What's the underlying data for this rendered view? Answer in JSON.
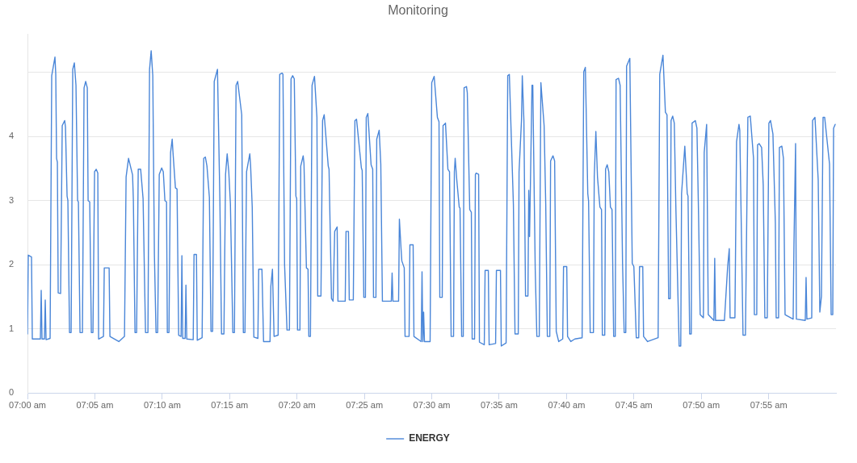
{
  "chart_data": {
    "type": "line",
    "title": "Monitoring",
    "x": [
      7,
      7.001,
      7.005,
      7.006,
      7.016,
      7.017,
      7.018,
      7.021,
      7.022,
      7.023,
      7.028,
      7.03,
      7.034,
      7.035,
      7.036,
      7.037,
      7.038,
      7.041,
      7.043,
      7.046,
      7.047,
      7.049,
      7.05,
      7.052,
      7.054,
      7.056,
      7.058,
      7.06,
      7.062,
      7.063,
      7.065,
      7.068,
      7.07,
      7.072,
      7.074,
      7.075,
      7.077,
      7.079,
      7.081,
      7.083,
      7.085,
      7.087,
      7.088,
      7.094,
      7.095,
      7.101,
      7.102,
      7.113,
      7.12,
      7.122,
      7.125,
      7.13,
      7.131,
      7.133,
      7.135,
      7.137,
      7.14,
      7.143,
      7.146,
      7.149,
      7.151,
      7.153,
      7.155,
      7.157,
      7.159,
      7.161,
      7.163,
      7.166,
      7.168,
      7.17,
      7.172,
      7.173,
      7.175,
      7.177,
      7.179,
      7.18,
      7.183,
      7.185,
      7.187,
      7.19,
      7.191,
      7.192,
      7.195,
      7.196,
      7.197,
      7.205,
      7.206,
      7.209,
      7.21,
      7.216,
      7.218,
      7.22,
      7.222,
      7.225,
      7.227,
      7.229,
      7.231,
      7.235,
      7.238,
      7.24,
      7.243,
      7.245,
      7.247,
      7.249,
      7.251,
      7.254,
      7.256,
      7.258,
      7.26,
      7.265,
      7.267,
      7.269,
      7.271,
      7.275,
      7.276,
      7.278,
      7.28,
      7.285,
      7.286,
      7.29,
      7.292,
      7.3,
      7.301,
      7.303,
      7.305,
      7.31,
      7.312,
      7.315,
      7.316,
      7.318,
      7.321,
      7.324,
      7.326,
      7.328,
      7.33,
      7.332,
      7.333,
      7.334,
      7.337,
      7.338,
      7.341,
      7.342,
      7.345,
      7.347,
      7.348,
      7.35,
      7.352,
      7.355,
      7.358,
      7.359,
      7.363,
      7.365,
      7.367,
      7.372,
      7.373,
      7.376,
      7.378,
      7.38,
      7.383,
      7.384,
      7.393,
      7.394,
      7.397,
      7.398,
      7.403,
      7.405,
      7.407,
      7.413,
      7.414,
      7.416,
      7.418,
      7.419,
      7.421,
      7.425,
      7.427,
      7.428,
      7.431,
      7.432,
      7.435,
      7.437,
      7.439,
      7.45,
      7.451,
      7.452,
      7.459,
      7.46,
      7.462,
      7.463,
      7.466,
      7.467,
      7.472,
      7.473,
      7.477,
      7.478,
      7.487,
      7.488,
      7.489,
      7.49,
      7.491,
      7.498,
      7.5,
      7.503,
      7.507,
      7.509,
      7.51,
      7.513,
      7.514,
      7.517,
      7.52,
      7.522,
      7.524,
      7.527,
      7.528,
      7.529,
      7.531,
      7.534,
      7.535,
      7.537,
      7.539,
      7.54,
      7.543,
      7.544,
      7.547,
      7.549,
      7.55,
      7.553,
      7.554,
      7.555,
      7.558,
      7.559,
      7.565,
      7.566,
      7.57,
      7.571,
      7.579,
      7.58,
      7.585,
      7.586,
      7.592,
      7.594,
      7.596,
      7.601,
      7.603,
      7.607,
      7.608,
      7.611,
      7.612,
      7.614,
      7.616,
      7.619,
      7.62,
      7.621,
      7.622,
      7.624,
      7.625,
      7.628,
      7.63,
      7.633,
      7.635,
      7.639,
      7.641,
      7.643,
      7.646,
      7.647,
      7.65,
      7.652,
      7.654,
      7.657,
      7.662,
      7.663,
      7.667,
      7.668,
      7.672,
      7.677,
      7.686,
      7.688,
      7.69,
      7.693,
      7.694,
      7.696,
      7.7,
      7.701,
      7.703,
      7.705,
      7.708,
      7.71,
      7.711,
      7.714,
      7.715,
      7.717,
      7.719,
      7.721,
      7.723,
      7.725,
      7.727,
      7.728,
      7.731,
      7.733,
      7.736,
      7.738,
      7.74,
      7.741,
      7.745,
      7.748,
      7.75,
      7.753,
      7.756,
      7.757,
      7.761,
      7.762,
      7.767,
      7.78,
      7.782,
      7.786,
      7.789,
      7.791,
      7.793,
      7.795,
      7.796,
      7.798,
      7.8,
      7.802,
      7.806,
      7.808,
      7.809,
      7.813,
      7.816,
      7.817,
      7.819,
      7.821,
      7.822,
      7.826,
      7.828,
      7.83,
      7.832,
      7.836,
      7.837,
      7.84,
      7.842,
      7.849,
      7.85,
      7.851,
      7.862,
      7.866,
      7.868,
      7.869,
      7.875,
      7.877,
      7.88,
      7.881,
      7.885,
      7.888,
      7.891,
      7.894,
      7.898,
      7.899,
      7.902,
      7.903,
      7.905,
      7.908,
      7.91,
      7.912,
      7.915,
      7.917,
      7.919,
      7.922,
      7.925,
      7.926,
      7.929,
      7.93,
      7.933,
      7.935,
      7.937,
      7.947,
      7.948,
      7.95,
      7.951,
      7.962,
      7.963,
      7.964,
      7.97,
      7.971,
      7.974,
      7.978,
      7.98,
      7.982,
      7.984,
      7.986,
      7.992,
      7.994,
      7.996,
      7.997,
      7.999
    ],
    "series": [
      {
        "name": "ENERGY",
        "color": "#4a86d8",
        "values": [
          0.92,
          2.15,
          2.12,
          0.84,
          0.84,
          1.6,
          0.84,
          0.84,
          1.45,
          0.83,
          0.85,
          4.95,
          5.24,
          4.97,
          3.66,
          3.6,
          1.56,
          1.55,
          4.17,
          4.25,
          4.15,
          3.07,
          3.0,
          0.94,
          0.94,
          5.05,
          5.15,
          4.8,
          3.0,
          2.98,
          0.94,
          0.94,
          4.76,
          4.86,
          4.76,
          3.0,
          2.98,
          0.94,
          0.94,
          3.45,
          3.49,
          3.43,
          0.84,
          0.88,
          1.95,
          1.95,
          0.88,
          0.8,
          0.88,
          3.37,
          3.66,
          3.4,
          3.0,
          0.94,
          0.94,
          3.49,
          3.49,
          3.03,
          0.94,
          0.94,
          5.05,
          5.34,
          4.95,
          2.16,
          0.94,
          0.94,
          3.41,
          3.51,
          3.45,
          3.0,
          2.98,
          0.94,
          0.94,
          3.75,
          3.96,
          3.75,
          3.2,
          3.18,
          0.9,
          0.88,
          2.14,
          0.85,
          0.85,
          1.68,
          0.84,
          0.83,
          2.16,
          2.16,
          0.82,
          0.86,
          3.66,
          3.68,
          3.54,
          3.05,
          0.96,
          0.96,
          4.86,
          5.05,
          3.0,
          0.92,
          0.92,
          3.41,
          3.73,
          3.45,
          2.95,
          0.94,
          0.94,
          4.8,
          4.86,
          4.34,
          0.94,
          0.94,
          3.45,
          3.73,
          3.54,
          2.9,
          0.87,
          0.85,
          1.93,
          1.93,
          0.8,
          0.8,
          1.66,
          1.93,
          0.88,
          0.9,
          4.97,
          4.99,
          4.97,
          2.0,
          0.98,
          0.98,
          4.9,
          4.95,
          4.9,
          3.07,
          3.03,
          0.98,
          0.98,
          3.54,
          3.7,
          3.58,
          1.95,
          1.93,
          0.88,
          0.88,
          4.8,
          4.94,
          4.3,
          1.51,
          1.51,
          4.25,
          4.34,
          3.54,
          3.49,
          1.47,
          1.43,
          2.52,
          2.59,
          1.43,
          1.43,
          2.52,
          2.52,
          1.45,
          1.45,
          4.25,
          4.27,
          3.51,
          3.47,
          1.49,
          1.49,
          4.3,
          4.36,
          3.56,
          3.49,
          1.49,
          1.49,
          3.96,
          4.1,
          3.57,
          1.43,
          1.43,
          1.87,
          1.43,
          1.43,
          2.71,
          2.26,
          2.06,
          1.95,
          0.88,
          0.88,
          2.31,
          2.31,
          0.88,
          0.8,
          1.89,
          0.8,
          1.26,
          0.8,
          0.8,
          4.84,
          4.94,
          4.3,
          4.23,
          1.49,
          1.49,
          4.17,
          4.21,
          3.49,
          3.45,
          0.88,
          0.88,
          3.45,
          3.66,
          3.32,
          2.9,
          2.88,
          0.88,
          0.88,
          4.76,
          4.78,
          4.68,
          2.86,
          2.82,
          0.84,
          0.84,
          3.41,
          3.43,
          3.41,
          0.79,
          0.75,
          1.91,
          1.91,
          0.75,
          0.77,
          1.91,
          1.91,
          0.73,
          0.78,
          4.95,
          4.97,
          2.94,
          0.92,
          0.92,
          3.45,
          4.25,
          4.95,
          4.25,
          1.51,
          1.51,
          3.16,
          2.44,
          3.2,
          4.8,
          4.8,
          1.93,
          0.88,
          0.88,
          4.84,
          4.17,
          2.94,
          0.88,
          0.88,
          3.62,
          3.7,
          3.62,
          0.96,
          0.8,
          0.84,
          1.97,
          1.97,
          0.88,
          0.8,
          0.84,
          0.86,
          5.01,
          5.08,
          3.11,
          2.99,
          0.94,
          0.94,
          3.37,
          4.08,
          3.37,
          2.9,
          2.86,
          0.9,
          0.9,
          3.49,
          3.56,
          3.45,
          2.9,
          2.86,
          0.88,
          0.88,
          4.89,
          4.91,
          4.8,
          2.02,
          0.94,
          0.94,
          5.1,
          5.22,
          2.02,
          1.97,
          0.86,
          0.86,
          1.97,
          1.97,
          0.88,
          0.8,
          0.86,
          4.97,
          5.27,
          4.38,
          4.34,
          1.47,
          1.47,
          4.25,
          4.32,
          4.21,
          2.86,
          0.73,
          0.73,
          3.11,
          3.85,
          3.11,
          3.07,
          0.92,
          0.92,
          4.21,
          4.25,
          4.13,
          2.78,
          1.22,
          1.17,
          3.75,
          4.19,
          1.22,
          1.13,
          2.1,
          1.13,
          1.13,
          1.97,
          2.25,
          1.17,
          1.17,
          3.92,
          4.19,
          4.1,
          0.9,
          0.9,
          4.3,
          4.32,
          3.66,
          1.22,
          1.22,
          3.87,
          3.89,
          3.83,
          3.24,
          1.17,
          1.17,
          4.21,
          4.25,
          4.04,
          2.65,
          1.17,
          1.17,
          3.83,
          3.85,
          3.66,
          1.22,
          1.15,
          2.31,
          3.89,
          1.15,
          1.13,
          1.8,
          1.15,
          1.17,
          4.25,
          4.3,
          3.32,
          1.26,
          1.51,
          4.3,
          4.3,
          3.57,
          1.22,
          1.22,
          4.13,
          4.19
        ]
      }
    ],
    "xlim": [
      7,
      8
    ],
    "xticks": [
      {
        "value": 7,
        "label": "07:00 am"
      },
      {
        "value": 7.0833,
        "label": "07:05 am"
      },
      {
        "value": 7.1667,
        "label": "07:10 am"
      },
      {
        "value": 7.25,
        "label": "07:15 am"
      },
      {
        "value": 7.3333,
        "label": "07:20 am"
      },
      {
        "value": 7.4167,
        "label": "07:25 am"
      },
      {
        "value": 7.5,
        "label": "07:30 am"
      },
      {
        "value": 7.5833,
        "label": "07:35 am"
      },
      {
        "value": 7.6667,
        "label": "07:40 am"
      },
      {
        "value": 7.75,
        "label": "07:45 am"
      },
      {
        "value": 7.8333,
        "label": "07:50 am"
      },
      {
        "value": 7.9167,
        "label": "07:55 am"
      }
    ],
    "ylim": [
      0,
      5.6
    ],
    "yticks": [
      0,
      1,
      2,
      3,
      4,
      {
        "value": 5,
        "label": null
      }
    ],
    "grid": "y",
    "legend": "bottom",
    "marker": "none",
    "line_style": "solid"
  }
}
